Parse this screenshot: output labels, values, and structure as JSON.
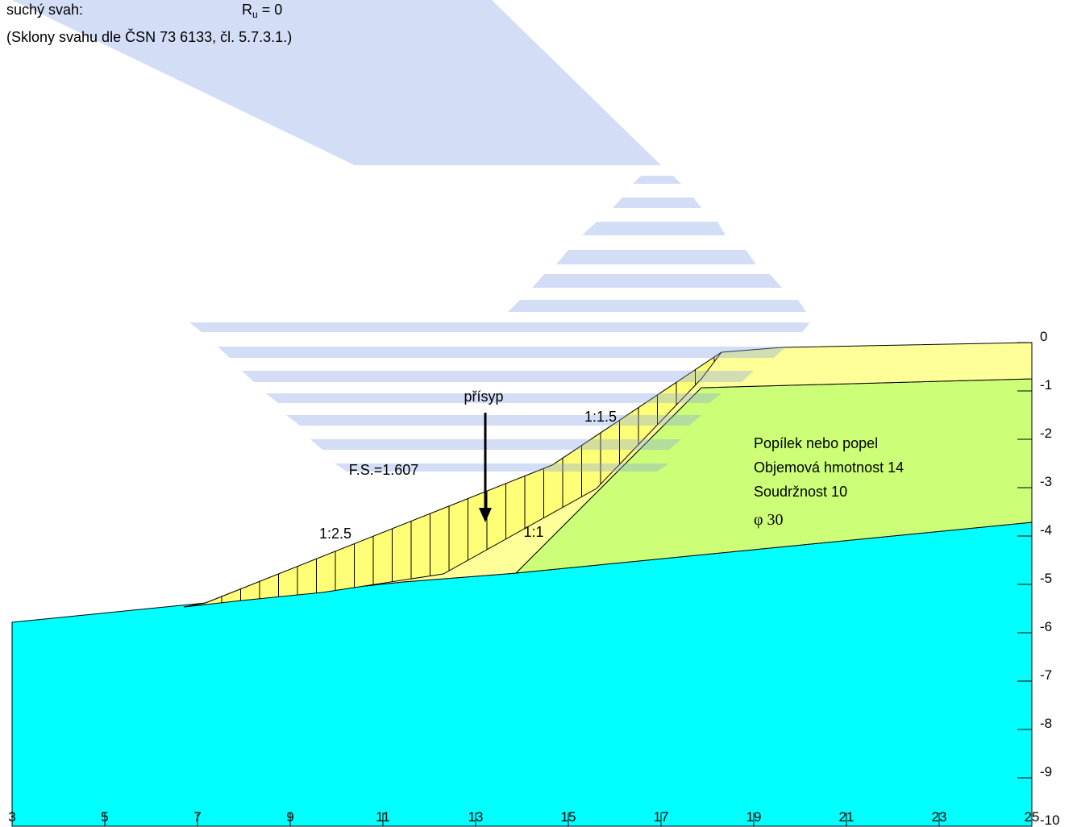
{
  "header": {
    "condition": "suchý svah:",
    "ru_symbol": "R",
    "ru_subscript": "u",
    "ru_value": " = 0",
    "note": "(Sklony svahu dle ČSN 73 6133, čl. 5.7.3.1.)"
  },
  "labels": {
    "fill": "přísyp",
    "upper_slope": "1:1.5",
    "lower_slope": "1:2.5",
    "inner_slope": "1:1",
    "safety_factor": "F.S.=1.607"
  },
  "material": {
    "name": "Popílek nebo popel",
    "unit_weight": "Objemová hmotnost 14",
    "cohesion": "Soudržnost 10",
    "friction": "φ 30"
  },
  "axes": {
    "xticks": [
      3,
      5,
      7,
      9,
      11,
      13,
      15,
      17,
      19,
      21,
      23,
      25
    ],
    "yticks": [
      0,
      -1,
      -2,
      -3,
      -4,
      -5,
      -6,
      -7,
      -8,
      -9,
      -10
    ]
  }
}
